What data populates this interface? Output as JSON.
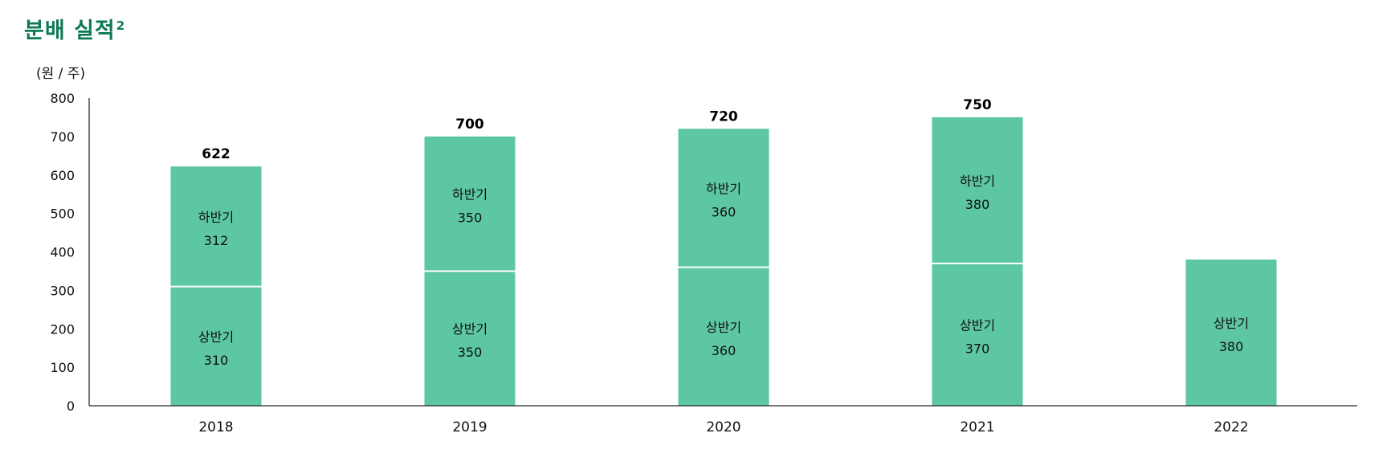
{
  "title": "분배 실적",
  "title_footnote": "2",
  "colors": {
    "title": "#0e7a55",
    "bar": "#5dc6a4",
    "divider": "#ffffff",
    "axis": "#222222"
  },
  "chart_data": {
    "type": "bar",
    "stacked": true,
    "unit_label": "(원 / 주)",
    "categories": [
      "2018",
      "2019",
      "2020",
      "2021",
      "2022"
    ],
    "series": [
      {
        "name": "상반기",
        "values": [
          310,
          350,
          360,
          370,
          380
        ]
      },
      {
        "name": "하반기",
        "values": [
          312,
          350,
          360,
          380,
          null
        ]
      }
    ],
    "totals": [
      622,
      700,
      720,
      750,
      null
    ],
    "ylim": [
      0,
      800
    ],
    "yticks": [
      0,
      100,
      200,
      300,
      400,
      500,
      600,
      700,
      800
    ],
    "grid": false,
    "legend": "none"
  }
}
